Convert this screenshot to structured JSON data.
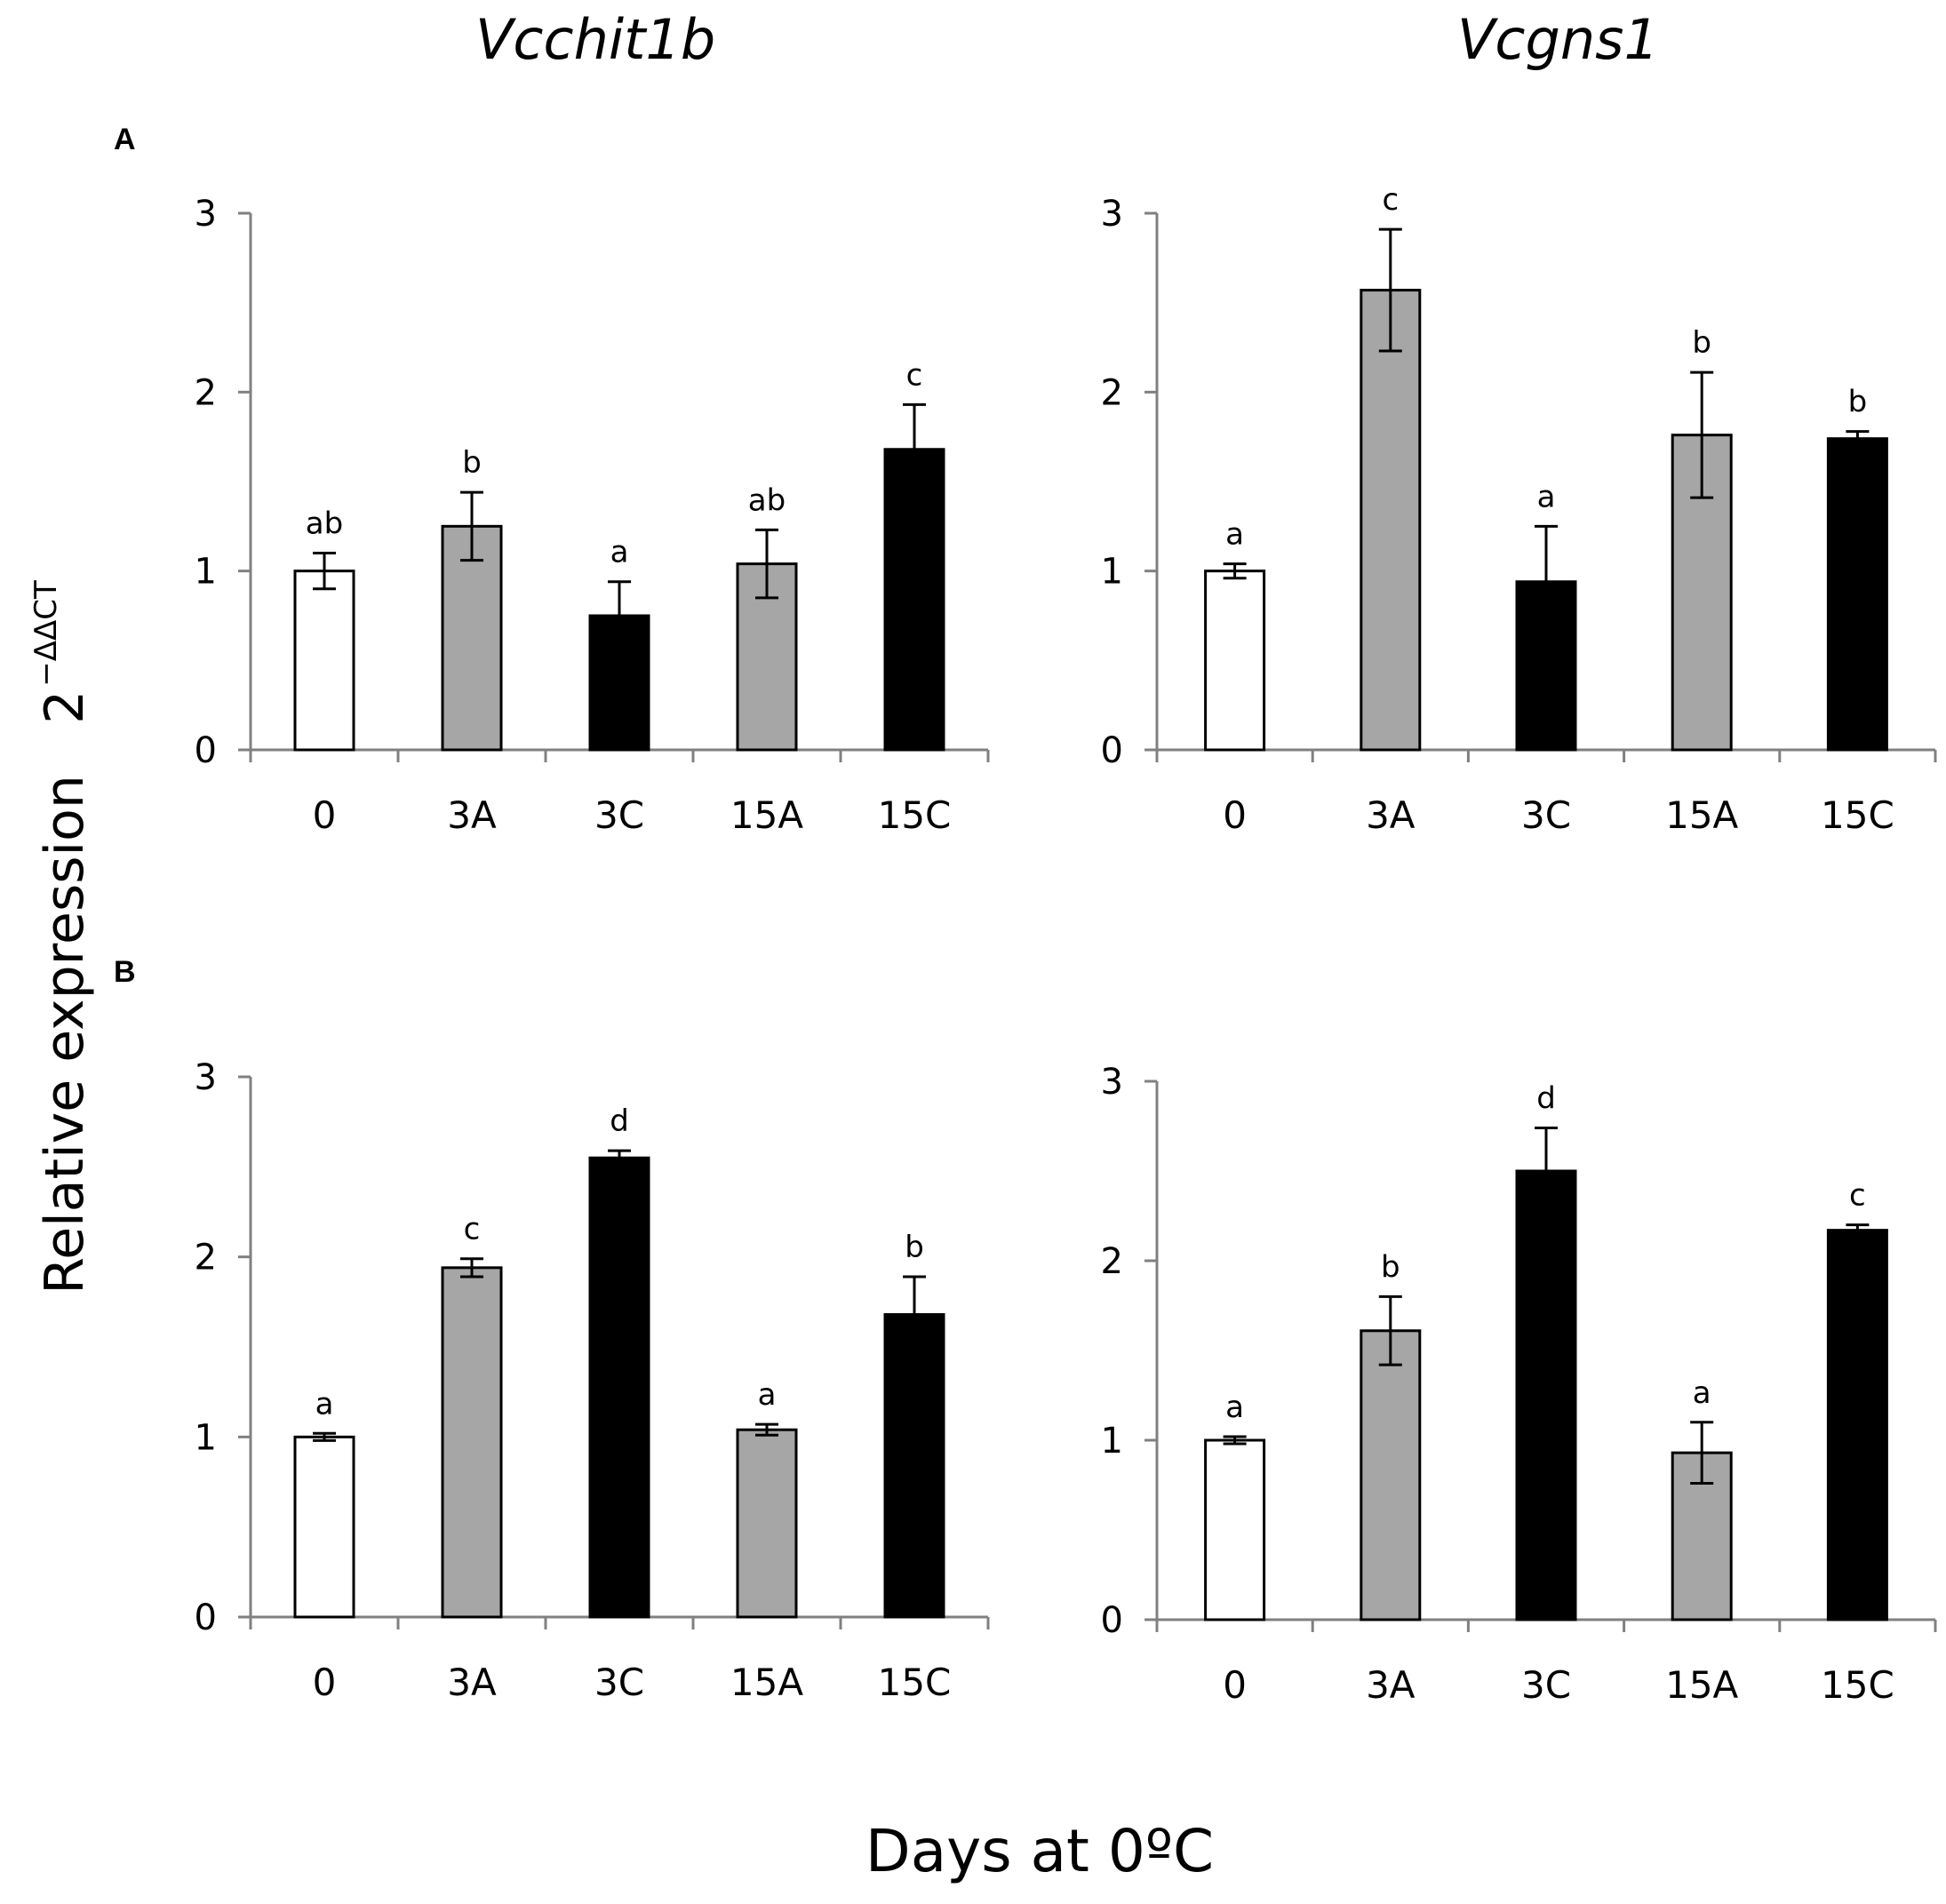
{
  "figure": {
    "column_titles": [
      "Vcchit1b",
      "Vcgns1"
    ],
    "panel_labels": [
      "A",
      "B"
    ],
    "ylabel_main": "Relative expression",
    "ylabel_base": "2",
    "ylabel_exp": "−ΔΔCT",
    "xlabel": "Days at 0ºC"
  },
  "colors": {
    "white_bar": "#ffffff",
    "gray_bar": "#a6a6a6",
    "black_bar": "#000000",
    "axis": "#808080"
  },
  "chart_data": [
    {
      "type": "bar",
      "panel": "A",
      "gene": "Vcchit1b",
      "categories": [
        "0",
        "3A",
        "3C",
        "15A",
        "15C"
      ],
      "values": [
        1.0,
        1.25,
        0.75,
        1.04,
        1.68
      ],
      "errors": [
        0.1,
        0.19,
        0.19,
        0.19,
        0.25
      ],
      "significance": [
        "ab",
        "b",
        "a",
        "ab",
        "c"
      ],
      "fills": [
        "white",
        "gray",
        "black",
        "gray",
        "black"
      ],
      "yticks": [
        "0",
        "1",
        "2",
        "3"
      ],
      "ylim": [
        0,
        3
      ]
    },
    {
      "type": "bar",
      "panel": "A",
      "gene": "Vcgns1",
      "categories": [
        "0",
        "3A",
        "3C",
        "15A",
        "15C"
      ],
      "values": [
        1.0,
        2.57,
        0.94,
        1.76,
        1.74
      ],
      "errors": [
        0.04,
        0.34,
        0.31,
        0.35,
        0.04
      ],
      "significance": [
        "a",
        "c",
        "a",
        "b",
        "b"
      ],
      "fills": [
        "white",
        "gray",
        "black",
        "gray",
        "black"
      ],
      "yticks": [
        "0",
        "1",
        "2",
        "3"
      ],
      "ylim": [
        0,
        3
      ]
    },
    {
      "type": "bar",
      "panel": "B",
      "gene": "Vcchit1b",
      "categories": [
        "0",
        "3A",
        "3C",
        "15A",
        "15C"
      ],
      "values": [
        1.0,
        1.94,
        2.55,
        1.04,
        1.68
      ],
      "errors": [
        0.02,
        0.05,
        0.04,
        0.03,
        0.21
      ],
      "significance": [
        "a",
        "c",
        "d",
        "a",
        "b"
      ],
      "fills": [
        "white",
        "gray",
        "black",
        "gray",
        "black"
      ],
      "yticks": [
        "0",
        "1",
        "2",
        "3"
      ],
      "ylim": [
        0,
        3
      ]
    },
    {
      "type": "bar",
      "panel": "B",
      "gene": "Vcgns1",
      "categories": [
        "0",
        "3A",
        "3C",
        "15A",
        "15C"
      ],
      "values": [
        1.0,
        1.61,
        2.5,
        0.93,
        2.17
      ],
      "errors": [
        0.02,
        0.19,
        0.24,
        0.17,
        0.03
      ],
      "significance": [
        "a",
        "b",
        "d",
        "a",
        "c"
      ],
      "fills": [
        "white",
        "gray",
        "black",
        "gray",
        "black"
      ],
      "yticks": [
        "0",
        "1",
        "2",
        "3"
      ],
      "ylim": [
        0,
        3
      ]
    }
  ]
}
